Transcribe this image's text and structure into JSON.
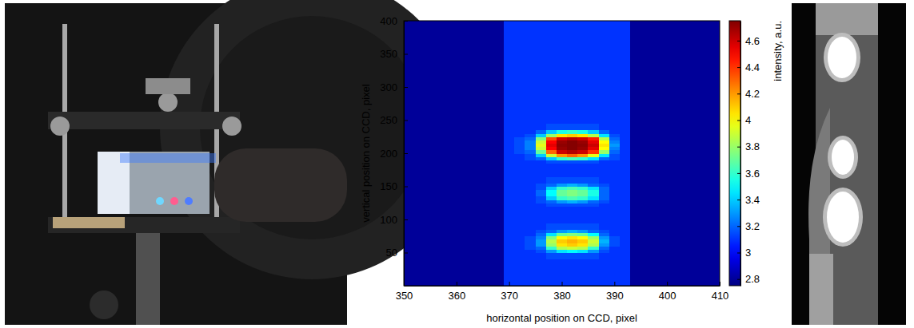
{
  "chart_data": {
    "type": "heatmap",
    "x_label": "horizontal position on CCD, pixel",
    "y_label": "vertical position on CCD, pixel",
    "xlim": [
      350,
      410
    ],
    "ylim": [
      0,
      400
    ],
    "xticks": [
      350,
      360,
      370,
      380,
      390,
      400,
      410
    ],
    "yticks": [
      50,
      100,
      150,
      200,
      250,
      300,
      350,
      400
    ],
    "x_edges": [
      350,
      369,
      371,
      373,
      375,
      377,
      379,
      381,
      383,
      385,
      387,
      389,
      391,
      393,
      410
    ],
    "y_edges": [
      0,
      40,
      50,
      55,
      60,
      65,
      70,
      75,
      80,
      85,
      95,
      120,
      125,
      130,
      135,
      140,
      145,
      150,
      155,
      165,
      185,
      190,
      195,
      200,
      205,
      210,
      215,
      220,
      225,
      230,
      235,
      245,
      400
    ],
    "cells": [
      [
        2.8,
        3.1,
        3.1,
        3.1,
        3.1,
        3.1,
        3.1,
        3.1,
        3.1,
        3.1,
        3.1,
        3.1,
        3.1,
        2.8
      ],
      [
        2.8,
        3.1,
        3.1,
        3.1,
        3.1,
        3.15,
        3.15,
        3.15,
        3.15,
        3.15,
        3.1,
        3.1,
        3.1,
        2.8
      ],
      [
        2.8,
        3.1,
        3.1,
        3.1,
        3.15,
        3.3,
        3.45,
        3.5,
        3.45,
        3.3,
        3.15,
        3.1,
        3.1,
        2.8
      ],
      [
        2.8,
        3.1,
        3.1,
        3.15,
        3.2,
        3.6,
        3.85,
        3.9,
        3.85,
        3.6,
        3.2,
        3.1,
        3.1,
        2.8
      ],
      [
        2.8,
        3.1,
        3.1,
        3.15,
        3.3,
        3.8,
        4.05,
        4.1,
        4.05,
        3.85,
        3.3,
        3.15,
        3.1,
        2.8
      ],
      [
        2.8,
        3.1,
        3.1,
        3.15,
        3.3,
        3.85,
        4.1,
        4.15,
        4.1,
        3.9,
        3.35,
        3.15,
        3.1,
        2.8
      ],
      [
        2.8,
        3.1,
        3.1,
        3.15,
        3.25,
        3.75,
        4.0,
        4.05,
        4.0,
        3.8,
        3.3,
        3.15,
        3.1,
        2.8
      ],
      [
        2.8,
        3.1,
        3.1,
        3.1,
        3.2,
        3.45,
        3.7,
        3.75,
        3.7,
        3.5,
        3.2,
        3.1,
        3.1,
        2.8
      ],
      [
        2.8,
        3.1,
        3.1,
        3.1,
        3.15,
        3.2,
        3.3,
        3.35,
        3.3,
        3.2,
        3.15,
        3.1,
        3.1,
        2.8
      ],
      [
        2.8,
        3.1,
        3.1,
        3.1,
        3.1,
        3.15,
        3.15,
        3.15,
        3.15,
        3.15,
        3.1,
        3.1,
        3.1,
        2.8
      ],
      [
        2.8,
        3.1,
        3.1,
        3.1,
        3.1,
        3.1,
        3.1,
        3.1,
        3.1,
        3.1,
        3.1,
        3.1,
        3.1,
        2.8
      ],
      [
        2.8,
        3.1,
        3.1,
        3.1,
        3.1,
        3.15,
        3.15,
        3.15,
        3.15,
        3.15,
        3.1,
        3.1,
        3.1,
        2.8
      ],
      [
        2.8,
        3.1,
        3.1,
        3.1,
        3.15,
        3.2,
        3.3,
        3.35,
        3.3,
        3.2,
        3.15,
        3.1,
        3.1,
        2.8
      ],
      [
        2.8,
        3.1,
        3.1,
        3.1,
        3.15,
        3.4,
        3.6,
        3.65,
        3.6,
        3.45,
        3.2,
        3.1,
        3.1,
        2.8
      ],
      [
        2.8,
        3.1,
        3.1,
        3.1,
        3.2,
        3.5,
        3.7,
        3.75,
        3.7,
        3.55,
        3.2,
        3.1,
        3.1,
        2.8
      ],
      [
        2.8,
        3.1,
        3.1,
        3.1,
        3.2,
        3.5,
        3.7,
        3.75,
        3.7,
        3.55,
        3.2,
        3.1,
        3.1,
        2.8
      ],
      [
        2.8,
        3.1,
        3.1,
        3.1,
        3.15,
        3.4,
        3.6,
        3.65,
        3.6,
        3.45,
        3.2,
        3.1,
        3.1,
        2.8
      ],
      [
        2.8,
        3.1,
        3.1,
        3.1,
        3.15,
        3.2,
        3.3,
        3.35,
        3.3,
        3.2,
        3.15,
        3.1,
        3.1,
        2.8
      ],
      [
        2.8,
        3.1,
        3.1,
        3.1,
        3.1,
        3.15,
        3.15,
        3.15,
        3.15,
        3.15,
        3.1,
        3.1,
        3.1,
        2.8
      ],
      [
        2.8,
        3.1,
        3.1,
        3.1,
        3.1,
        3.1,
        3.1,
        3.1,
        3.1,
        3.1,
        3.1,
        3.1,
        3.1,
        2.8
      ],
      [
        2.8,
        3.1,
        3.1,
        3.1,
        3.1,
        3.15,
        3.15,
        3.15,
        3.15,
        3.15,
        3.1,
        3.1,
        3.1,
        2.8
      ],
      [
        2.8,
        3.1,
        3.1,
        3.15,
        3.2,
        3.4,
        3.6,
        3.65,
        3.6,
        3.45,
        3.2,
        3.15,
        3.1,
        2.8
      ],
      [
        2.8,
        3.1,
        3.1,
        3.15,
        3.4,
        3.9,
        4.2,
        4.3,
        4.2,
        3.95,
        3.45,
        3.15,
        3.1,
        2.8
      ],
      [
        2.8,
        3.1,
        3.15,
        3.2,
        3.7,
        4.3,
        4.6,
        4.65,
        4.6,
        4.4,
        3.8,
        3.2,
        3.1,
        2.8
      ],
      [
        2.8,
        3.1,
        3.15,
        3.25,
        3.9,
        4.5,
        4.7,
        4.74,
        4.7,
        4.55,
        4.0,
        3.25,
        3.1,
        2.8
      ],
      [
        2.8,
        3.1,
        3.15,
        3.25,
        3.95,
        4.55,
        4.72,
        4.74,
        4.72,
        4.6,
        4.05,
        3.3,
        3.1,
        2.8
      ],
      [
        2.8,
        3.1,
        3.15,
        3.25,
        3.9,
        4.5,
        4.7,
        4.74,
        4.7,
        4.55,
        4.0,
        3.25,
        3.1,
        2.8
      ],
      [
        2.8,
        3.1,
        3.15,
        3.2,
        3.75,
        4.35,
        4.6,
        4.65,
        4.6,
        4.45,
        3.85,
        3.2,
        3.1,
        2.8
      ],
      [
        2.8,
        3.1,
        3.1,
        3.15,
        3.4,
        3.8,
        4.05,
        4.1,
        4.05,
        3.85,
        3.45,
        3.15,
        3.1,
        2.8
      ],
      [
        2.8,
        3.1,
        3.1,
        3.1,
        3.2,
        3.4,
        3.55,
        3.6,
        3.55,
        3.4,
        3.2,
        3.1,
        3.1,
        2.8
      ],
      [
        2.8,
        3.1,
        3.1,
        3.1,
        3.1,
        3.15,
        3.15,
        3.15,
        3.15,
        3.15,
        3.1,
        3.1,
        3.1,
        2.8
      ],
      [
        2.8,
        3.1,
        3.1,
        3.1,
        3.1,
        3.1,
        3.1,
        3.1,
        3.1,
        3.1,
        3.1,
        3.1,
        3.1,
        2.8
      ]
    ],
    "colorbar": {
      "label": "intensity, a.u.",
      "range": [
        2.75,
        4.75
      ],
      "ticks": [
        2.8,
        3,
        3.2,
        3.4,
        3.6,
        3.8,
        4,
        4.2,
        4.4,
        4.6
      ]
    }
  }
}
